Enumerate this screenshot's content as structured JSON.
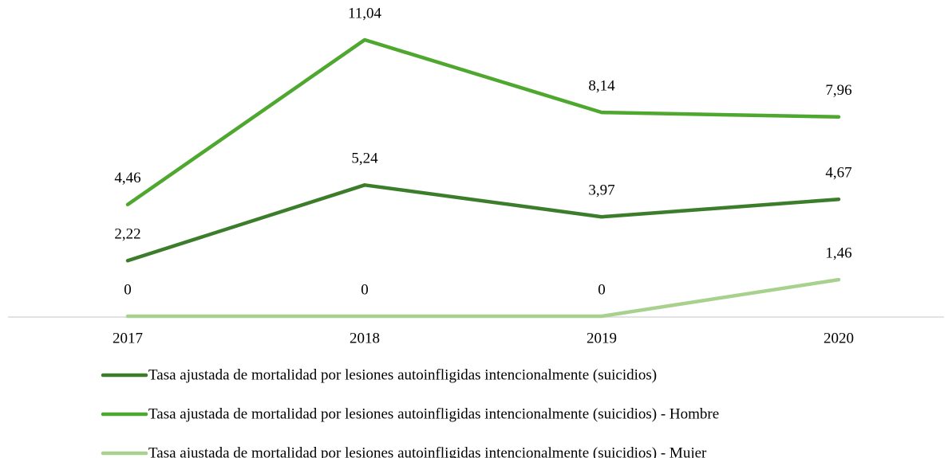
{
  "chart_data": {
    "type": "line",
    "categories": [
      "2017",
      "2018",
      "2019",
      "2020"
    ],
    "series": [
      {
        "name": "Tasa ajustada de mortalidad por lesiones autoinfligidas intencionalmente (suicidios)",
        "color": "#3b7d2b",
        "values": [
          2.22,
          5.24,
          3.97,
          4.67
        ],
        "value_labels": [
          "2,22",
          "5,24",
          "3,97",
          "4,67"
        ]
      },
      {
        "name": "Tasa ajustada de mortalidad por lesiones autoinfligidas intencionalmente (suicidios) - Hombre",
        "color": "#4ea72e",
        "values": [
          4.46,
          11.04,
          8.14,
          7.96
        ],
        "value_labels": [
          "4,46",
          "11,04",
          "8,14",
          "7,96"
        ]
      },
      {
        "name": "Tasa ajustada de mortalidad por lesiones autoinfligidas intencionalmente (suicidios) - Mujer",
        "color": "#a9d18e",
        "values": [
          0,
          0,
          0,
          1.46
        ],
        "value_labels": [
          "0",
          "0",
          "0",
          "1,46"
        ]
      }
    ]
  }
}
